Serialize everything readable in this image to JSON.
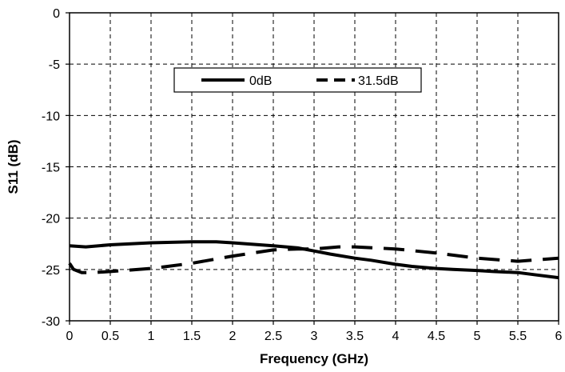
{
  "chart_data": {
    "type": "line",
    "xlabel": "Frequency (GHz)",
    "ylabel": "S11 (dB)",
    "xlim": [
      0,
      6
    ],
    "ylim": [
      -30,
      0
    ],
    "x_ticks": [
      0,
      0.5,
      1,
      1.5,
      2,
      2.5,
      3,
      3.5,
      4,
      4.5,
      5,
      5.5,
      6
    ],
    "x_tick_labels": [
      "0",
      "0.5",
      "1",
      "1.5",
      "2",
      "2.5",
      "3",
      "3.5",
      "4",
      "4.5",
      "5",
      "5.5",
      "6"
    ],
    "y_ticks": [
      0,
      -5,
      -10,
      -15,
      -20,
      -25,
      -30
    ],
    "y_tick_labels": [
      "0",
      "-5",
      "-10",
      "-15",
      "-20",
      "-25",
      "-30"
    ],
    "grid": true,
    "legend_position": "top-center",
    "series": [
      {
        "name": "0dB",
        "style": "solid",
        "x": [
          0,
          0.2,
          0.5,
          1,
          1.5,
          1.8,
          2,
          2.5,
          2.8,
          3,
          3.2,
          3.5,
          3.7,
          4,
          4.2,
          4.5,
          4.7,
          5,
          5.2,
          5.5,
          5.7,
          6
        ],
        "y": [
          -22.7,
          -22.8,
          -22.6,
          -22.4,
          -22.3,
          -22.3,
          -22.4,
          -22.7,
          -22.9,
          -23.2,
          -23.5,
          -23.9,
          -24.1,
          -24.5,
          -24.7,
          -24.9,
          -25.0,
          -25.1,
          -25.2,
          -25.3,
          -25.5,
          -25.8
        ]
      },
      {
        "name": "31.5dB",
        "style": "dashed",
        "x": [
          0,
          0.05,
          0.15,
          0.3,
          0.5,
          1,
          1.5,
          2,
          2.5,
          2.8,
          3,
          3.3,
          3.5,
          4,
          4.5,
          5,
          5.5,
          6
        ],
        "y": [
          -24.4,
          -25.0,
          -25.3,
          -25.3,
          -25.2,
          -24.9,
          -24.4,
          -23.7,
          -23.1,
          -23.0,
          -23.0,
          -22.8,
          -22.8,
          -23.0,
          -23.4,
          -23.9,
          -24.2,
          -23.9
        ]
      }
    ]
  }
}
